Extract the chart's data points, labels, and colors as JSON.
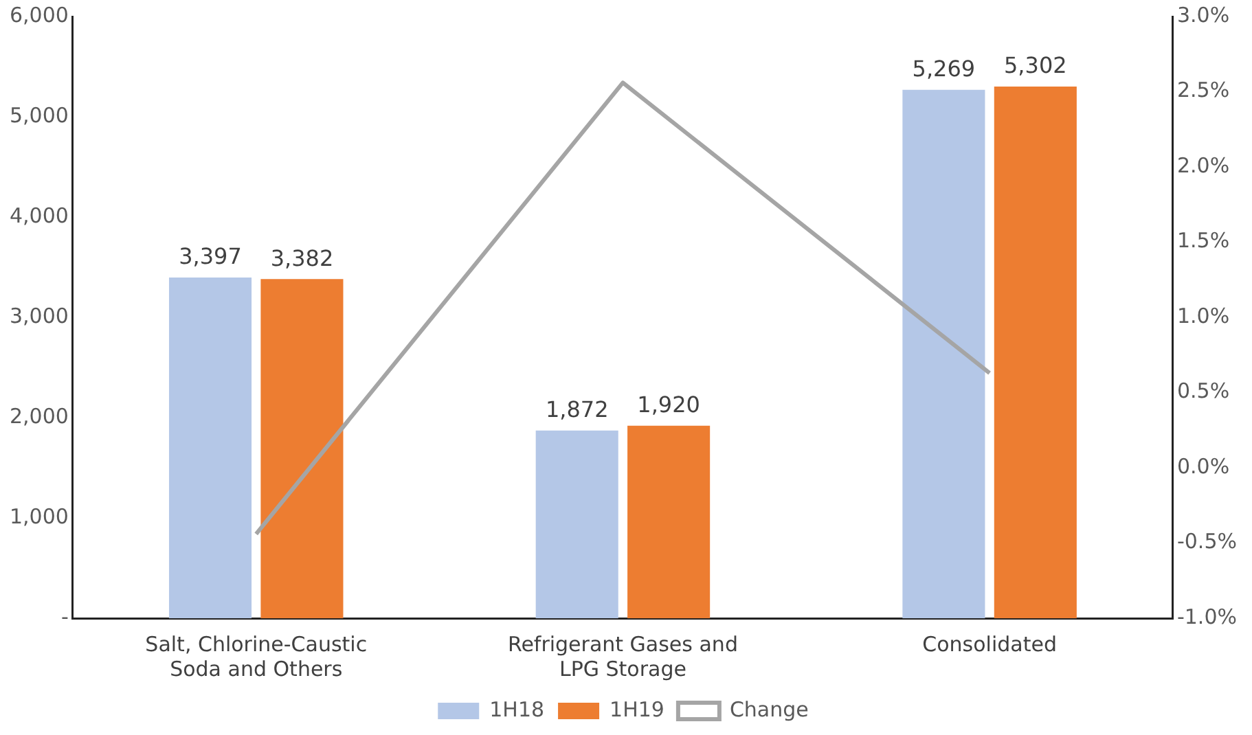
{
  "chart_data": {
    "type": "bar",
    "categories": [
      "Salt, Chlorine-Caustic Soda and Others",
      "Refrigerant Gases and LPG Storage",
      "Consolidated"
    ],
    "series": [
      {
        "name": "1H18",
        "color": "#b4c7e7",
        "values": [
          3397,
          1872,
          5269
        ],
        "value_labels": [
          "3,397",
          "1,872",
          "5,269"
        ]
      },
      {
        "name": "1H19",
        "color": "#ed7d31",
        "values": [
          3382,
          1920,
          5302
        ],
        "value_labels": [
          "3,382",
          "1,920",
          "5,302"
        ]
      },
      {
        "name": "Change",
        "type": "line",
        "axis": "y2",
        "color": "#a5a5a5",
        "values": [
          -0.44,
          2.56,
          0.63
        ]
      }
    ],
    "ylim": [
      0,
      6000
    ],
    "yticks": [
      {
        "value": 0,
        "label": "-"
      },
      {
        "value": 1000,
        "label": "1,000"
      },
      {
        "value": 2000,
        "label": "2,000"
      },
      {
        "value": 3000,
        "label": "3,000"
      },
      {
        "value": 4000,
        "label": "4,000"
      },
      {
        "value": 5000,
        "label": "5,000"
      },
      {
        "value": 6000,
        "label": "6,000"
      }
    ],
    "y2lim": [
      -1,
      3
    ],
    "y2ticks": [
      {
        "value": -1,
        "label": "-1.0%"
      },
      {
        "value": -0.5,
        "label": "-0.5%"
      },
      {
        "value": 0,
        "label": "0.0%"
      },
      {
        "value": 0.5,
        "label": "0.5%"
      },
      {
        "value": 1,
        "label": "1.0%"
      },
      {
        "value": 1.5,
        "label": "1.5%"
      },
      {
        "value": 2,
        "label": "2.0%"
      },
      {
        "value": 2.5,
        "label": "2.5%"
      },
      {
        "value": 3,
        "label": "3.0%"
      }
    ],
    "grid": false,
    "legend": "bottom",
    "marker": "none",
    "line_style": "solid"
  }
}
